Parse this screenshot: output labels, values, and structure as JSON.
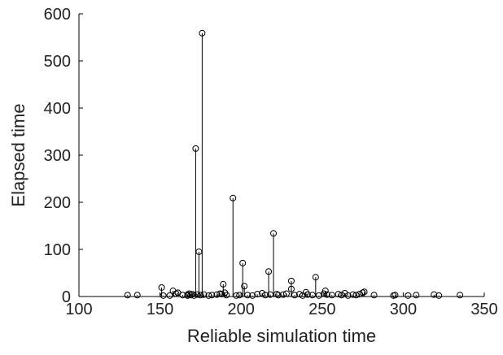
{
  "chart_data": {
    "type": "stem",
    "xlabel": "Reliable simulation time",
    "ylabel": "Elapsed time",
    "xlim": [
      100,
      350
    ],
    "ylim": [
      0,
      600
    ],
    "xticks": [
      100,
      150,
      200,
      250,
      300,
      350
    ],
    "yticks": [
      0,
      100,
      200,
      300,
      400,
      500,
      600
    ],
    "color": "#000000",
    "x": [
      130,
      136,
      151,
      152,
      156,
      158,
      160,
      161,
      164,
      167,
      167,
      168,
      169,
      170,
      171,
      172,
      173,
      174,
      175,
      176,
      177,
      180,
      182,
      185,
      187,
      188,
      189,
      190,
      191,
      195,
      197,
      199,
      201,
      202,
      204,
      207,
      210,
      213,
      215,
      217,
      218,
      220,
      222,
      223,
      226,
      228,
      231,
      231,
      233,
      236,
      238,
      240,
      241,
      244,
      246,
      248,
      251,
      252,
      253,
      256,
      260,
      262,
      264,
      266,
      269,
      271,
      273,
      275,
      276,
      282,
      294,
      295,
      303,
      308,
      319,
      322,
      335
    ],
    "values": [
      3,
      3,
      19,
      2,
      2,
      12,
      6,
      8,
      3,
      4,
      2,
      6,
      3,
      5,
      2,
      314,
      4,
      95,
      3,
      559,
      4,
      2,
      3,
      4,
      6,
      5,
      26,
      8,
      3,
      209,
      2,
      3,
      71,
      22,
      3,
      2,
      5,
      7,
      3,
      53,
      4,
      134,
      5,
      3,
      4,
      6,
      33,
      16,
      3,
      5,
      2,
      9,
      4,
      3,
      41,
      2,
      6,
      12,
      4,
      3,
      5,
      3,
      7,
      2,
      4,
      3,
      5,
      8,
      10,
      3,
      2,
      3,
      2,
      3,
      4,
      2,
      3
    ]
  }
}
